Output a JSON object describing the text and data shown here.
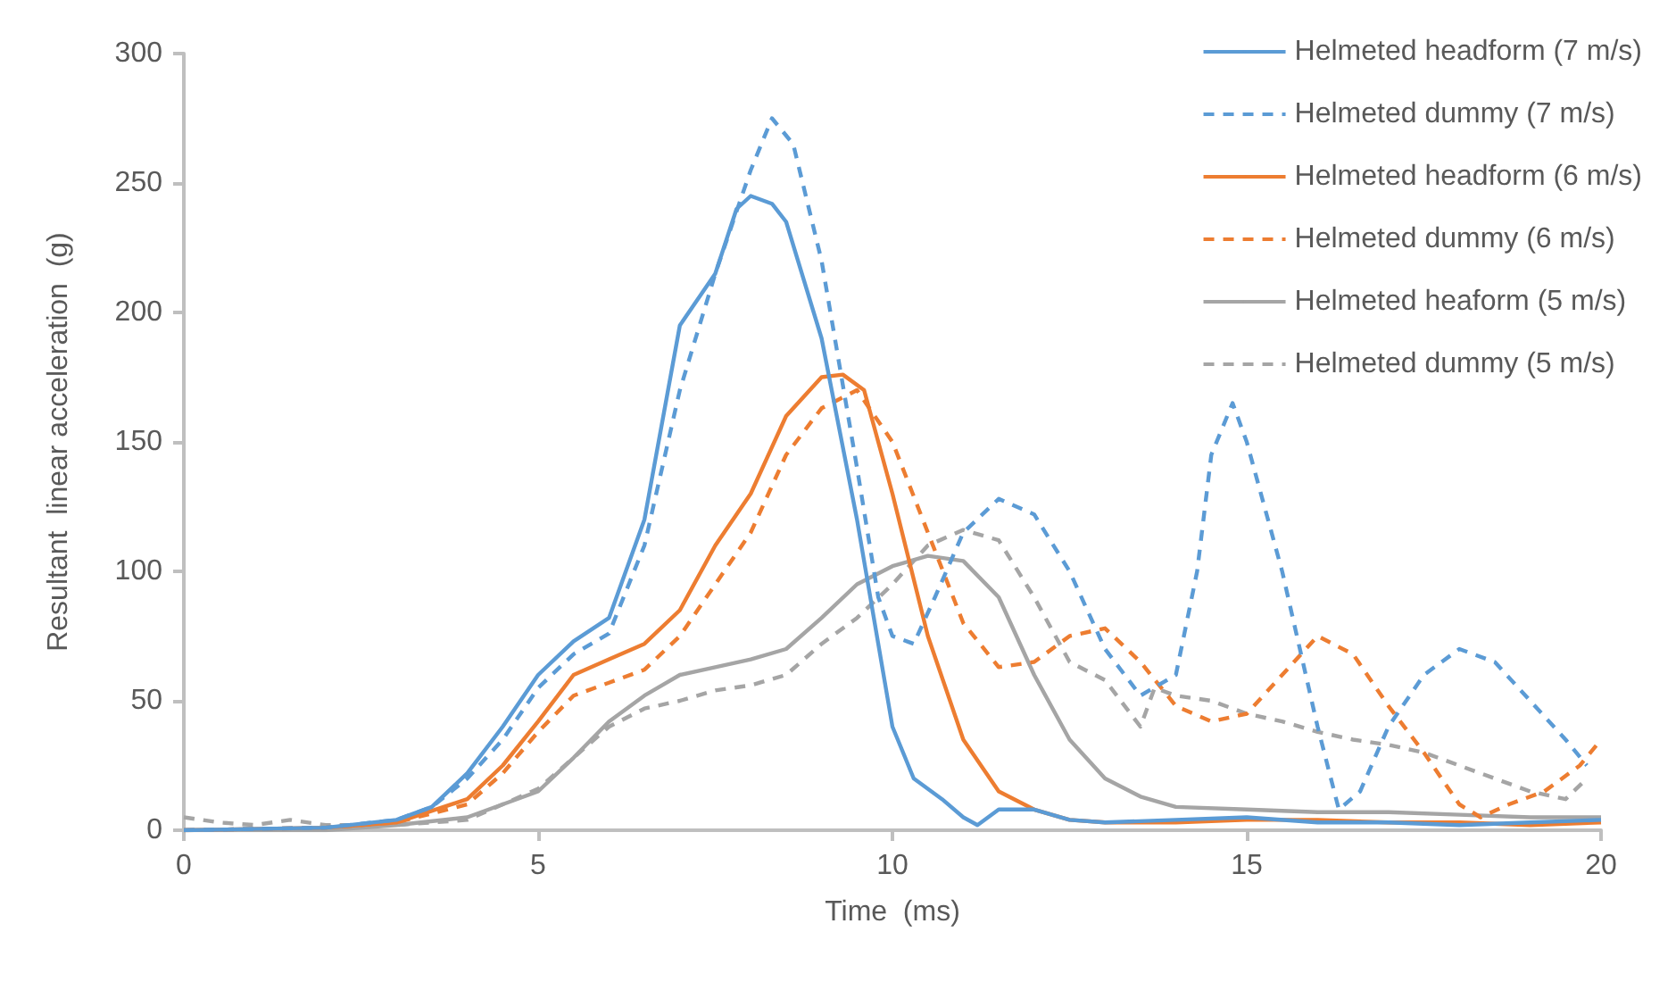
{
  "chart_data": {
    "type": "line",
    "xlabel": "Time  (ms)",
    "ylabel": "Resultant  linear acceleration  (g)",
    "xlim": [
      0,
      20
    ],
    "xticks": [
      0,
      5,
      10,
      15,
      20
    ],
    "ylim": [
      0,
      300
    ],
    "yticks": [
      0,
      50,
      100,
      150,
      200,
      250,
      300
    ],
    "grid": false,
    "legend": "top right",
    "marker": "none",
    "series": [
      {
        "name": "Helmeted headform (7 m/s)",
        "color": "#5b9bd5",
        "line_style": "solid",
        "x": [
          0,
          2,
          3,
          3.5,
          4,
          4.5,
          5,
          5.5,
          6,
          6.5,
          7,
          7.5,
          7.8,
          8,
          8.3,
          8.5,
          9,
          9.5,
          10,
          10.3,
          10.7,
          11,
          11.2,
          11.5,
          12,
          12.5,
          13,
          14,
          15,
          16,
          17,
          18,
          19,
          20
        ],
        "values": [
          0,
          1,
          4,
          9,
          22,
          40,
          60,
          73,
          82,
          120,
          195,
          215,
          240,
          245,
          242,
          235,
          190,
          120,
          40,
          20,
          12,
          5,
          2,
          8,
          8,
          4,
          3,
          4,
          5,
          3,
          3,
          2,
          3,
          4
        ]
      },
      {
        "name": "Helmeted dummy (7 m/s)",
        "color": "#5b9bd5",
        "line_style": "dashed",
        "x": [
          0,
          2,
          3,
          3.5,
          4,
          4.5,
          5,
          5.5,
          6,
          6.5,
          7,
          7.5,
          8,
          8.3,
          8.6,
          9,
          9.5,
          9.8,
          10,
          10.3,
          10.6,
          11,
          11.5,
          12,
          12.5,
          13,
          13.5,
          14,
          14.3,
          14.5,
          14.8,
          15,
          15.5,
          16,
          16.3,
          16.6,
          17,
          17.5,
          18,
          18.5,
          19,
          19.5,
          19.8
        ],
        "values": [
          0,
          1,
          4,
          9,
          20,
          35,
          55,
          68,
          76,
          110,
          170,
          215,
          255,
          275,
          265,
          220,
          140,
          90,
          75,
          72,
          90,
          115,
          128,
          122,
          100,
          70,
          52,
          60,
          100,
          145,
          165,
          150,
          100,
          40,
          8,
          15,
          40,
          60,
          70,
          65,
          50,
          35,
          25
        ]
      },
      {
        "name": "Helmeted headform (6 m/s)",
        "color": "#ed7d31",
        "line_style": "solid",
        "x": [
          0,
          2,
          3,
          4,
          4.5,
          5,
          5.5,
          6,
          6.5,
          7,
          7.5,
          8,
          8.5,
          9,
          9.3,
          9.6,
          10,
          10.5,
          11,
          11.5,
          12,
          12.5,
          13,
          14,
          15,
          16,
          17,
          18,
          19,
          20
        ],
        "values": [
          0,
          1,
          3,
          12,
          25,
          42,
          60,
          66,
          72,
          85,
          110,
          130,
          160,
          175,
          176,
          170,
          130,
          75,
          35,
          15,
          8,
          4,
          3,
          3,
          4,
          4,
          3,
          3,
          2,
          3
        ]
      },
      {
        "name": "Helmeted dummy (6 m/s)",
        "color": "#ed7d31",
        "line_style": "dashed",
        "x": [
          0,
          2,
          3,
          4,
          4.5,
          5,
          5.5,
          6,
          6.5,
          7,
          7.5,
          8,
          8.5,
          9,
          9.5,
          10,
          10.5,
          11,
          11.5,
          12,
          12.5,
          13,
          13.5,
          14,
          14.5,
          15,
          15.5,
          16,
          16.5,
          17,
          17.5,
          18,
          18.3,
          18.7,
          19.2,
          19.7,
          20
        ],
        "values": [
          0,
          1,
          3,
          10,
          22,
          38,
          52,
          57,
          62,
          75,
          95,
          115,
          145,
          163,
          170,
          150,
          115,
          80,
          63,
          65,
          75,
          78,
          65,
          48,
          42,
          45,
          60,
          75,
          68,
          48,
          30,
          10,
          5,
          10,
          15,
          25,
          35
        ]
      },
      {
        "name": "Helmeted heaform (5 m/s)",
        "color": "#a5a5a5",
        "line_style": "solid",
        "x": [
          0,
          2,
          3,
          4,
          4.5,
          5,
          5.5,
          6,
          6.5,
          7,
          7.5,
          8,
          8.5,
          9,
          9.5,
          10,
          10.5,
          11,
          11.5,
          12,
          12.5,
          13,
          13.5,
          14,
          15,
          16,
          17,
          18,
          19,
          20
        ],
        "values": [
          0,
          0,
          2,
          5,
          10,
          15,
          28,
          42,
          52,
          60,
          63,
          66,
          70,
          82,
          95,
          102,
          106,
          104,
          90,
          60,
          35,
          20,
          13,
          9,
          8,
          7,
          7,
          6,
          5,
          5
        ]
      },
      {
        "name": "Helmeted dummy (5 m/s)",
        "color": "#a5a5a5",
        "line_style": "dashed",
        "x": [
          0,
          0.5,
          1,
          1.5,
          2,
          3,
          4,
          4.5,
          5,
          5.5,
          6,
          6.5,
          7,
          7.5,
          8,
          8.5,
          9,
          9.5,
          10,
          10.5,
          11,
          11.5,
          12,
          12.5,
          13,
          13.5,
          13.7,
          14,
          14.5,
          15,
          15.5,
          16,
          16.5,
          17,
          17.5,
          18,
          18.5,
          19,
          19.5,
          19.8
        ],
        "values": [
          5,
          3,
          2,
          4,
          2,
          2,
          4,
          10,
          16,
          28,
          40,
          47,
          50,
          54,
          56,
          60,
          72,
          82,
          95,
          110,
          116,
          112,
          90,
          65,
          58,
          40,
          55,
          52,
          50,
          45,
          42,
          38,
          35,
          33,
          30,
          25,
          20,
          15,
          12,
          20
        ]
      }
    ]
  }
}
